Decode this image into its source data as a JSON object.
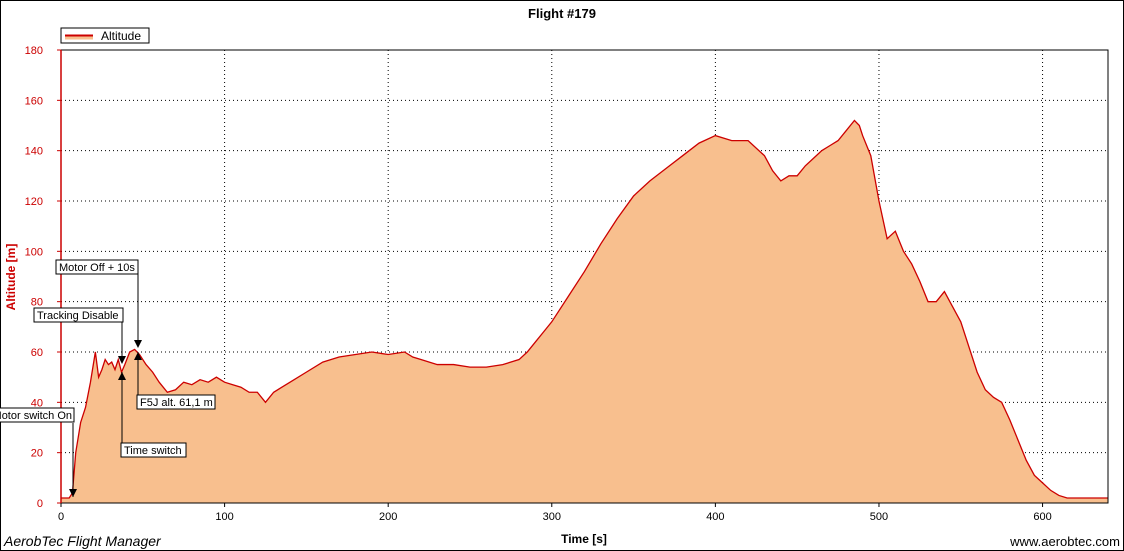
{
  "chart_data": {
    "type": "area",
    "title": "Flight #179",
    "xlabel": "Time [s]",
    "ylabel": "Altitude [m]",
    "xlim": [
      0,
      640
    ],
    "ylim": [
      0,
      180
    ],
    "xticks": [
      0,
      100,
      200,
      300,
      400,
      500,
      600
    ],
    "yticks": [
      0,
      20,
      40,
      60,
      80,
      100,
      120,
      140,
      160,
      180
    ],
    "grid": true,
    "legend": {
      "position": "top-left",
      "entries": [
        "Altitude"
      ]
    },
    "series": [
      {
        "name": "Altitude",
        "color": "#cc0000",
        "fill": "#f8bf8e",
        "x": [
          0,
          5,
          7,
          9,
          12,
          15,
          18,
          21,
          23,
          25,
          27,
          29,
          31,
          33,
          35,
          37,
          39,
          42,
          45,
          48,
          52,
          56,
          60,
          65,
          70,
          75,
          80,
          85,
          90,
          95,
          100,
          105,
          110,
          115,
          120,
          125,
          130,
          135,
          140,
          150,
          160,
          170,
          180,
          190,
          200,
          210,
          215,
          220,
          230,
          240,
          250,
          260,
          270,
          280,
          285,
          290,
          295,
          300,
          310,
          320,
          330,
          340,
          350,
          360,
          370,
          380,
          390,
          400,
          410,
          420,
          430,
          435,
          440,
          445,
          450,
          455,
          460,
          465,
          470,
          475,
          480,
          485,
          488,
          490,
          495,
          500,
          505,
          510,
          515,
          520,
          525,
          530,
          535,
          540,
          545,
          550,
          555,
          560,
          565,
          570,
          575,
          580,
          585,
          590,
          595,
          600,
          605,
          610,
          615,
          620,
          625,
          630,
          635,
          640
        ],
        "y": [
          2,
          2,
          4,
          20,
          32,
          38,
          48,
          60,
          50,
          53,
          57,
          55,
          56,
          53,
          57,
          52,
          55,
          60,
          61,
          59,
          55,
          52,
          48,
          44,
          45,
          48,
          47,
          49,
          48,
          50,
          48,
          47,
          46,
          44,
          44,
          40,
          44,
          46,
          48,
          52,
          56,
          58,
          59,
          60,
          59,
          60,
          58,
          57,
          55,
          55,
          54,
          54,
          55,
          57,
          60,
          64,
          68,
          72,
          82,
          92,
          103,
          113,
          122,
          128,
          133,
          138,
          143,
          146,
          144,
          144,
          138,
          132,
          128,
          130,
          130,
          134,
          137,
          140,
          142,
          144,
          148,
          152,
          150,
          146,
          138,
          120,
          105,
          108,
          100,
          95,
          88,
          80,
          80,
          84,
          78,
          72,
          62,
          52,
          45,
          42,
          40,
          33,
          25,
          17,
          11,
          8,
          5,
          3,
          2,
          2,
          2,
          2,
          2,
          2
        ]
      }
    ],
    "annotations": [
      {
        "label": "Motor switch On",
        "x": 7,
        "y": 4
      },
      {
        "label": "Tracking Disable",
        "x": 38,
        "y": 56
      },
      {
        "label": "Time switch",
        "x": 38,
        "y": 52
      },
      {
        "label": "Motor Off + 10s",
        "x": 47,
        "y": 62
      },
      {
        "label": "F5J alt. 61,1 m",
        "x": 47,
        "y": 61
      }
    ]
  },
  "footer": {
    "left": "AerobTec Flight Manager",
    "right": "www.aerobtec.com"
  }
}
